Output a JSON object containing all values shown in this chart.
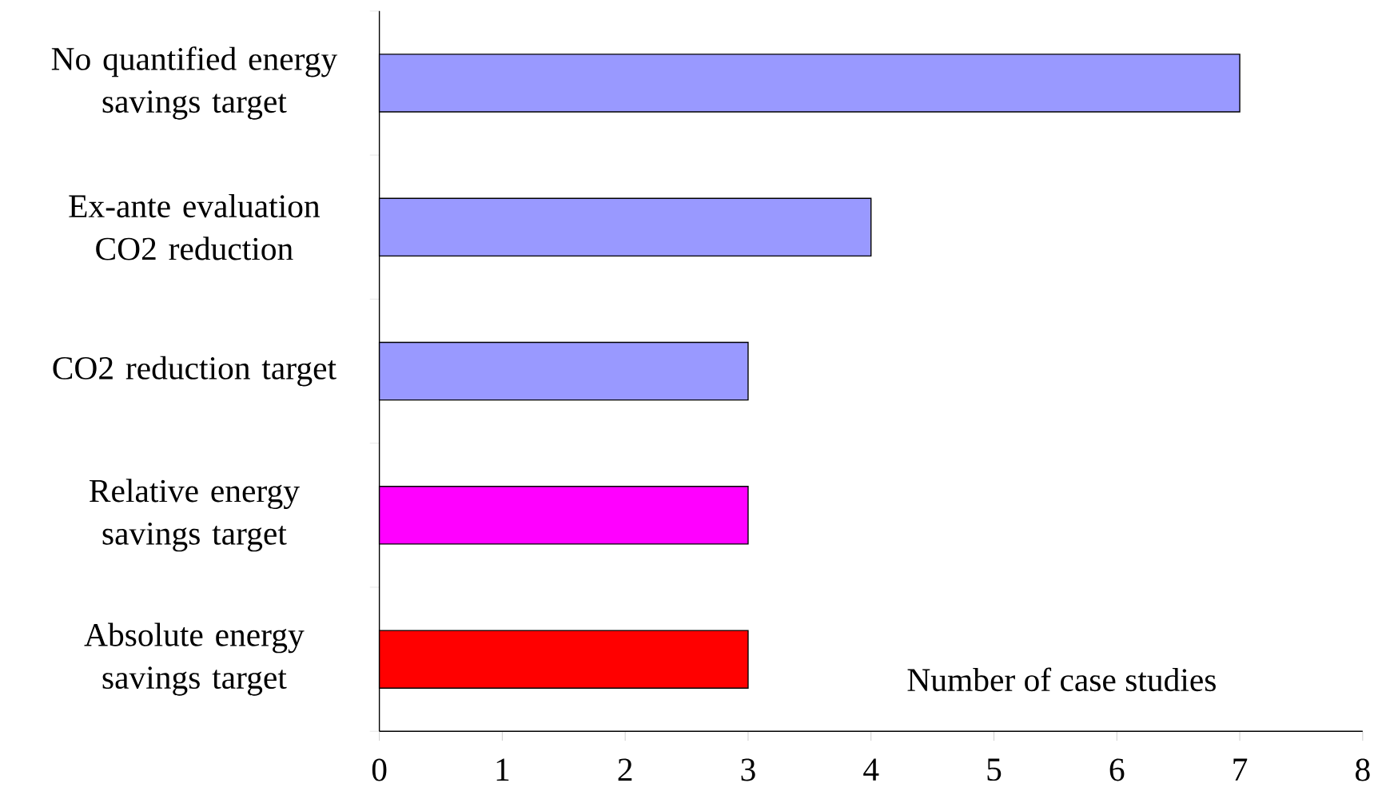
{
  "chart_data": {
    "type": "bar",
    "orientation": "horizontal",
    "xlabel": "Number of case studies",
    "categories": [
      "No quantified energy savings target",
      "Ex-ante evaluation CO2 reduction",
      "CO2 reduction target",
      "Relative energy savings target",
      "Absolute energy savings target"
    ],
    "values": [
      7,
      4,
      3,
      3,
      3
    ],
    "colors": [
      "#9999ff",
      "#9999ff",
      "#9999ff",
      "#ff00ff",
      "#ff0000"
    ],
    "xlim": [
      0,
      8
    ],
    "xticks": [
      0,
      1,
      2,
      3,
      4,
      5,
      6,
      7,
      8
    ],
    "grid": false
  }
}
